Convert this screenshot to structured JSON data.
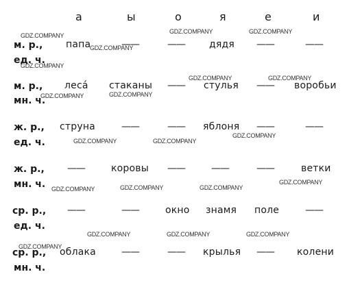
{
  "header": {
    "vowels": [
      "а",
      "ы",
      "о",
      "я",
      "е",
      "и"
    ]
  },
  "rows": [
    {
      "label1": "м. р.,",
      "label2": "ед. ч.",
      "cells": [
        "папа",
        "——",
        "——",
        "дядя",
        "——",
        "——"
      ]
    },
    {
      "label1": "м. р.,",
      "label2": "мн. ч.",
      "cells": [
        "леса́",
        "стаканы",
        "——",
        "стулья",
        "——",
        "воробьи"
      ]
    },
    {
      "label1": "ж. р.,",
      "label2": "ед. ч.",
      "cells": [
        "струна",
        "——",
        "——",
        "яблоня",
        "——",
        "——"
      ]
    },
    {
      "label1": "ж. р.,",
      "label2": "мн. ч.",
      "cells": [
        "——",
        "коровы",
        "——",
        "——",
        "——",
        "ветки"
      ]
    },
    {
      "label1": "ср. р.,",
      "label2": "ед. ч.",
      "cells": [
        "——",
        "——",
        "окно",
        "знамя",
        "поле",
        "——"
      ]
    },
    {
      "label1": "ср. р.,",
      "label2": "мн. ч.",
      "cells": [
        "облака",
        "——",
        "——",
        "крылья",
        "——",
        "колени"
      ]
    }
  ],
  "watermark": "GDZ.COMPANY"
}
